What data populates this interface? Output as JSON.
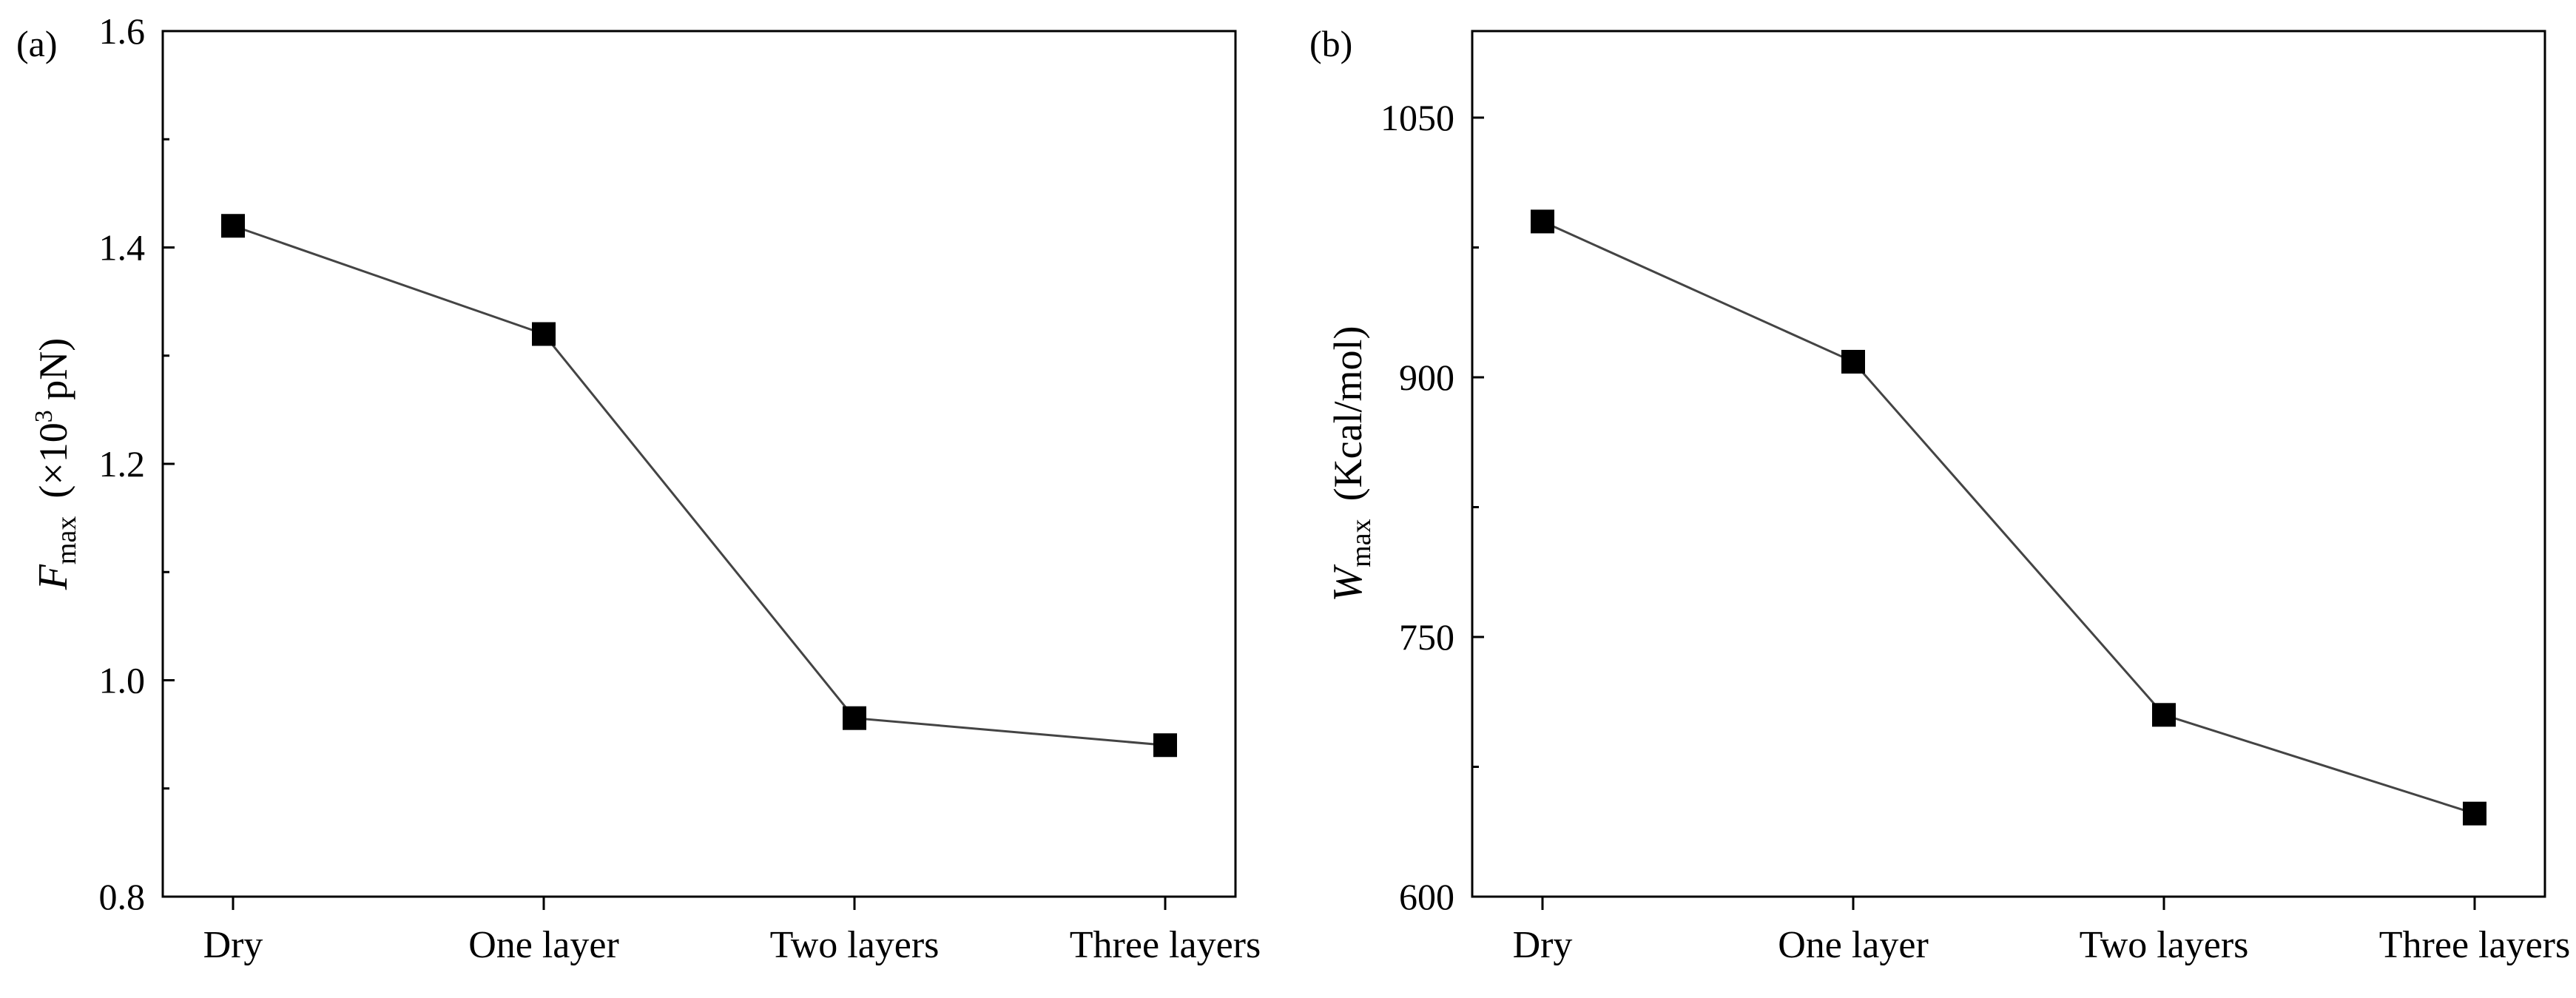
{
  "chart_data": [
    {
      "panel_label": "(a)",
      "type": "line",
      "categories": [
        "Dry",
        "One layer",
        "Two layers",
        "Three layers"
      ],
      "series": [
        {
          "name": "Fmax",
          "values": [
            1.42,
            1.32,
            0.965,
            0.94
          ]
        }
      ],
      "ylim": [
        0.8,
        1.6
      ],
      "yticks": [
        "0.8",
        "1.0",
        "1.2",
        "1.4",
        "1.6"
      ],
      "ylabel": {
        "main": "F",
        "sub": "max",
        "unit_prefix": "(×10",
        "unit_sup": "3",
        "unit_suffix": " pN)"
      },
      "marker": "square",
      "grid": false
    },
    {
      "panel_label": "(b)",
      "type": "line",
      "categories": [
        "Dry",
        "One layer",
        "Two layers",
        "Three layers"
      ],
      "series": [
        {
          "name": "Wmax",
          "values": [
            990,
            909,
            705,
            648
          ]
        }
      ],
      "ylim": [
        600,
        1100
      ],
      "yticks": [
        "600",
        "750",
        "900",
        "1050"
      ],
      "ylabel": {
        "main": "W",
        "sub": "max",
        "unit_prefix": "(Kcal/mol)",
        "unit_sup": "",
        "unit_suffix": ""
      },
      "marker": "square",
      "grid": false
    }
  ]
}
